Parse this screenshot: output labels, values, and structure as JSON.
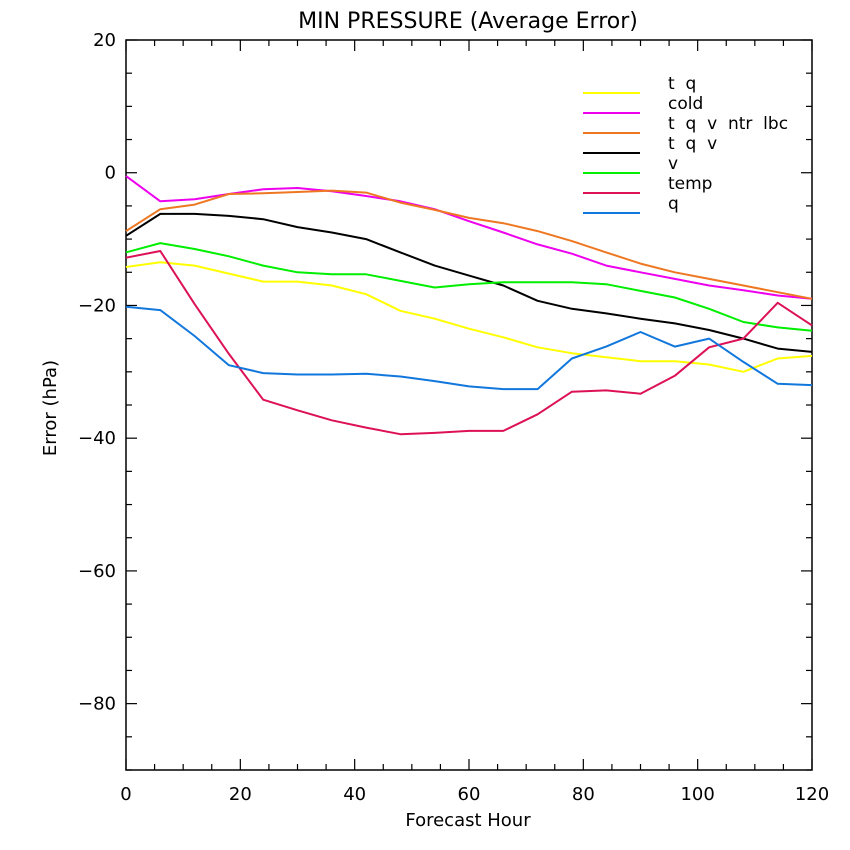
{
  "chart_data": {
    "type": "line",
    "title": "MIN PRESSURE (Average Error)",
    "xlabel": "Forecast Hour",
    "ylabel": "Error (hPa)",
    "xlim": [
      0,
      120
    ],
    "ylim": [
      -90,
      20
    ],
    "xticks": [
      0,
      20,
      40,
      60,
      80,
      100,
      120
    ],
    "yticks": [
      -80,
      -60,
      -40,
      -20,
      0,
      20
    ],
    "xtick_labels": [
      "0",
      "20",
      "40",
      "60",
      "80",
      "100",
      "120"
    ],
    "ytick_labels": [
      "−80",
      "−60",
      "−40",
      "−20",
      "0",
      "20"
    ],
    "grid": false,
    "legend_position": "top-right",
    "x": [
      0,
      6,
      12,
      18,
      24,
      30,
      36,
      42,
      48,
      54,
      60,
      66,
      72,
      78,
      84,
      90,
      96,
      102,
      108,
      114,
      120
    ],
    "series": [
      {
        "name": "t  q",
        "color": "#ffff00",
        "values": [
          -14.2,
          -13.5,
          -14,
          -15.2,
          -16.4,
          -16.4,
          -17,
          -18.3,
          -20.8,
          -22,
          -23.5,
          -24.8,
          -26.3,
          -27.2,
          -27.8,
          -28.4,
          -28.4,
          -28.9,
          -30,
          -28,
          -27.6
        ]
      },
      {
        "name": "cold",
        "color": "#ee00ee",
        "values": [
          -0.5,
          -4.3,
          -4,
          -3.2,
          -2.5,
          -2.3,
          -2.8,
          -3.5,
          -4.3,
          -5.5,
          -7.3,
          -9,
          -10.8,
          -12.2,
          -14,
          -15,
          -16,
          -17,
          -17.7,
          -18.5,
          -19
        ]
      },
      {
        "name": "t  q  v  ntr  lbc",
        "color": "#ee7722",
        "values": [
          -8.8,
          -5.5,
          -4.8,
          -3.2,
          -3.1,
          -2.9,
          -2.7,
          -3,
          -4.5,
          -5.6,
          -6.8,
          -7.6,
          -8.8,
          -10.3,
          -12,
          -13.7,
          -15,
          -16,
          -17,
          -18,
          -19
        ]
      },
      {
        "name": "t  q  v",
        "color": "#000000",
        "values": [
          -9.5,
          -6.2,
          -6.2,
          -6.5,
          -7,
          -8.2,
          -9,
          -10,
          -12,
          -14,
          -15.5,
          -17,
          -19.3,
          -20.5,
          -21.2,
          -22,
          -22.7,
          -23.7,
          -25,
          -26.5,
          -27
        ]
      },
      {
        "name": "v",
        "color": "#00ee00",
        "values": [
          -12,
          -10.6,
          -11.5,
          -12.6,
          -14,
          -15,
          -15.3,
          -15.3,
          -16.3,
          -17.3,
          -16.8,
          -16.5,
          -16.5,
          -16.5,
          -16.8,
          -17.8,
          -18.8,
          -20.5,
          -22.5,
          -23.3,
          -23.8
        ]
      },
      {
        "name": "temp",
        "color": "#dd1155",
        "values": [
          -12.8,
          -11.8,
          -19.8,
          -27.3,
          -34.2,
          -35.8,
          -37.3,
          -38.4,
          -39.4,
          -39.2,
          -38.9,
          -38.9,
          -36.4,
          -33,
          -32.8,
          -33.3,
          -30.6,
          -26.3,
          -25,
          -19.6,
          -23
        ]
      },
      {
        "name": "q",
        "color": "#1177dd",
        "values": [
          -20.2,
          -20.7,
          -24.6,
          -29,
          -30.2,
          -30.4,
          -30.4,
          -30.3,
          -30.7,
          -31.4,
          -32.2,
          -32.6,
          -32.6,
          -28,
          -26.2,
          -24,
          -26.2,
          -25,
          -28.5,
          -31.8,
          -32
        ]
      }
    ]
  }
}
